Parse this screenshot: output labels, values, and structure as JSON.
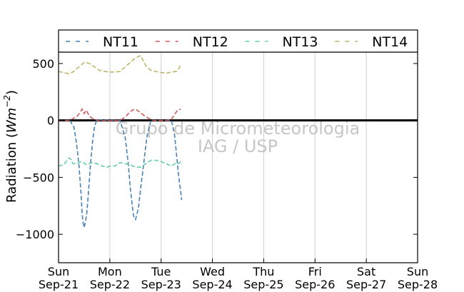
{
  "chart_data": {
    "type": "line",
    "ylabel": "Radiation (Wm⁻²)",
    "ylabel_text": "Radiation (",
    "ylabel_math": "Wm",
    "ylabel_exp": "−2",
    "ylabel_close": ")",
    "ylim": [
      -1250,
      600
    ],
    "yticks": [
      -1000,
      -500,
      0,
      500
    ],
    "ytick_labels": [
      "−1000",
      "−500",
      "0",
      "500"
    ],
    "xlim": [
      0,
      7
    ],
    "xticks": [
      0,
      1,
      2,
      3,
      4,
      5,
      6,
      7
    ],
    "xtick_labels": [
      [
        "Sun",
        "Sep-21"
      ],
      [
        "Mon",
        "Sep-22"
      ],
      [
        "Tue",
        "Sep-23"
      ],
      [
        "Wed",
        "Sep-24"
      ],
      [
        "Thu",
        "Sep-25"
      ],
      [
        "Fri",
        "Sep-26"
      ],
      [
        "Sat",
        "Sep-27"
      ],
      [
        "Sun",
        "Sep-28"
      ]
    ],
    "grid": "vertical",
    "zero_line": true,
    "legend_position": "top",
    "watermark": [
      "Grupo de Micrometeorologia",
      "IAG / USP"
    ],
    "series": [
      {
        "name": "NT11",
        "color": "#4682b4",
        "x": [
          0.22,
          0.3,
          0.35,
          0.4,
          0.44,
          0.46,
          0.48,
          0.5,
          0.52,
          0.55,
          0.58,
          0.62,
          0.66,
          0.7,
          0.74,
          0.8,
          1.2,
          1.3,
          1.36,
          1.4,
          1.44,
          1.46,
          1.48,
          1.5,
          1.52,
          1.56,
          1.6,
          1.66,
          1.72,
          1.8,
          2.2,
          2.26,
          2.3,
          2.34,
          2.38,
          2.4
        ],
        "y": [
          0,
          -60,
          -200,
          -400,
          -650,
          -820,
          -900,
          -940,
          -900,
          -820,
          -650,
          -400,
          -200,
          -60,
          0,
          5,
          0,
          -150,
          -380,
          -600,
          -760,
          -830,
          -860,
          -870,
          -840,
          -760,
          -600,
          -380,
          -150,
          0,
          0,
          -120,
          -300,
          -480,
          -620,
          -700
        ]
      },
      {
        "name": "NT12",
        "color": "#cd5c5c",
        "x": [
          0,
          0.2,
          0.35,
          0.42,
          0.46,
          0.5,
          0.54,
          0.6,
          0.68,
          0.78,
          0.9,
          1.0,
          1.1,
          1.2,
          1.3,
          1.38,
          1.44,
          1.5,
          1.56,
          1.62,
          1.68,
          1.75,
          1.85,
          2.0,
          2.1,
          2.2,
          2.26,
          2.32,
          2.38
        ],
        "y": [
          0,
          0,
          30,
          70,
          100,
          60,
          90,
          40,
          10,
          0,
          0,
          0,
          0,
          0,
          30,
          70,
          90,
          100,
          80,
          60,
          40,
          20,
          0,
          0,
          0,
          10,
          50,
          90,
          100
        ]
      },
      {
        "name": "NT13",
        "color": "#66cdaa",
        "x": [
          0,
          0.1,
          0.2,
          0.24,
          0.28,
          0.35,
          0.45,
          0.55,
          0.65,
          0.75,
          0.85,
          0.95,
          1.0,
          1.1,
          1.2,
          1.3,
          1.4,
          1.5,
          1.6,
          1.7,
          1.8,
          1.9,
          2.0,
          2.1,
          2.2,
          2.3,
          2.35,
          2.38
        ],
        "y": [
          -400,
          -390,
          -330,
          -340,
          -380,
          -380,
          -360,
          -390,
          -370,
          -380,
          -400,
          -410,
          -400,
          -400,
          -370,
          -380,
          -390,
          -410,
          -410,
          -380,
          -350,
          -350,
          -360,
          -380,
          -400,
          -370,
          -380,
          -360
        ]
      },
      {
        "name": "NT14",
        "color": "#bdb76b",
        "x": [
          0,
          0.1,
          0.2,
          0.3,
          0.4,
          0.5,
          0.6,
          0.7,
          0.8,
          0.9,
          1.0,
          1.1,
          1.2,
          1.3,
          1.4,
          1.5,
          1.6,
          1.7,
          1.8,
          1.9,
          2.0,
          2.1,
          2.2,
          2.3,
          2.35,
          2.38
        ],
        "y": [
          430,
          420,
          410,
          430,
          470,
          510,
          500,
          470,
          440,
          430,
          425,
          425,
          430,
          470,
          510,
          550,
          570,
          480,
          440,
          430,
          420,
          415,
          425,
          430,
          460,
          490
        ]
      }
    ]
  }
}
